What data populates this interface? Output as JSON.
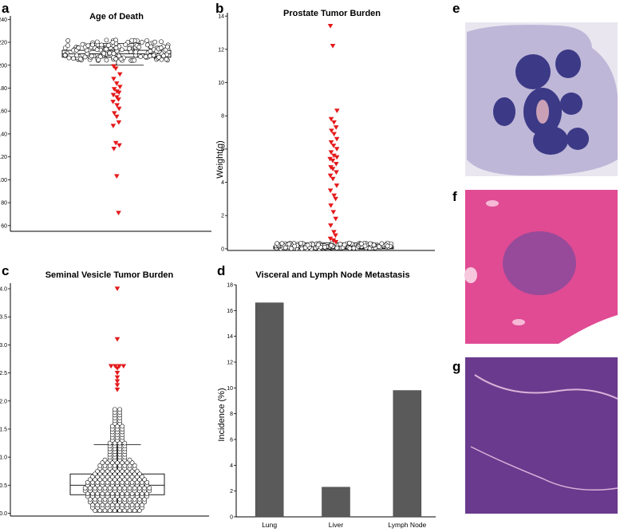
{
  "panels": {
    "a": {
      "letter": "a"
    },
    "b": {
      "letter": "b"
    },
    "c": {
      "letter": "c"
    },
    "d": {
      "letter": "d"
    },
    "e": {
      "letter": "e"
    },
    "f": {
      "letter": "f"
    },
    "g": {
      "letter": "g"
    }
  },
  "colors": {
    "marker_open": "#ffffff",
    "marker_outlier": "#e41a1c",
    "bar_fill": "#5a5a5a",
    "histo_e_bg": "#eae6f0",
    "histo_e_tissue": "#b7aed4",
    "histo_e_tumor": "#3c3a86",
    "histo_f_bg": "#e04b94",
    "histo_f_nodule": "#8a4a9a",
    "histo_g_bg": "#6a3a8e"
  },
  "chart_data": [
    {
      "id": "a",
      "type": "scatter",
      "title": "Age of Death",
      "ylabel": "",
      "ylim": [
        55,
        243
      ],
      "yticks": [
        60,
        80,
        100,
        120,
        140,
        160,
        180,
        200,
        220,
        240
      ],
      "box": {
        "q1": 207,
        "median": 210,
        "q3": 213,
        "whisker_low": 200,
        "whisker_high": 219
      },
      "cluster": {
        "range": [
          204,
          222
        ],
        "count": 170
      },
      "outliers": [
        199,
        197,
        192,
        188,
        184,
        181,
        179,
        177,
        176,
        174,
        172,
        170,
        168,
        165,
        162,
        158,
        155,
        150,
        147,
        132,
        130,
        127,
        103,
        71
      ]
    },
    {
      "id": "b",
      "type": "scatter",
      "title": "Prostate Tumor Burden",
      "ylabel": "Weight(g)",
      "ylim": [
        -0.1,
        14.2
      ],
      "yticks": [
        0,
        2,
        4,
        6,
        8,
        10,
        12,
        14
      ],
      "box": {
        "q1": 0.0,
        "median": 0.05,
        "q3": 0.15,
        "whisker_low": -0.02,
        "whisker_high": 0.35
      },
      "cluster": {
        "range": [
          0.0,
          0.35
        ],
        "count": 160
      },
      "outliers": [
        13.4,
        12.2,
        8.3,
        7.8,
        7.6,
        7.3,
        7.1,
        6.9,
        6.6,
        6.4,
        6.2,
        6.0,
        5.8,
        5.6,
        5.5,
        5.4,
        5.3,
        5.1,
        4.9,
        4.8,
        4.6,
        4.4,
        4.2,
        3.8,
        3.5,
        3.2,
        3.0,
        2.6,
        2.2,
        1.8,
        1.4,
        1.0,
        0.8,
        0.6,
        0.5,
        0.4
      ]
    },
    {
      "id": "c",
      "type": "scatter",
      "title": "Seminal Vesicle Tumor Burden",
      "ylabel": "",
      "ylim": [
        -0.05,
        4.1
      ],
      "yticks": [
        0.0,
        0.5,
        1.0,
        1.5,
        2.0,
        2.5,
        3.0,
        3.5,
        4.0
      ],
      "yticklabels": [
        "0.0",
        "0.5",
        "1.0",
        "1.5",
        "2.0",
        "2.5",
        "3.0",
        "3.5",
        "4.0"
      ],
      "box": {
        "q1": 0.33,
        "median": 0.5,
        "q3": 0.7,
        "whisker_low": 0.02,
        "whisker_high": 1.22
      },
      "outliers": [
        4.0,
        3.1,
        2.62,
        2.62,
        2.62,
        2.62,
        2.58,
        2.5,
        2.42,
        2.35,
        2.28,
        2.2
      ]
    },
    {
      "id": "d",
      "type": "bar",
      "title": "Visceral and Lymph Node Metastasis",
      "ylabel": "Incidence (%)",
      "xlabel": "",
      "categories": [
        "Lung",
        "Liver",
        "Lymph Node"
      ],
      "values": [
        16.6,
        2.3,
        9.8
      ],
      "ylim": [
        0,
        18
      ],
      "yticks": [
        0,
        2,
        4,
        6,
        8,
        10,
        12,
        14,
        16,
        18
      ]
    }
  ]
}
